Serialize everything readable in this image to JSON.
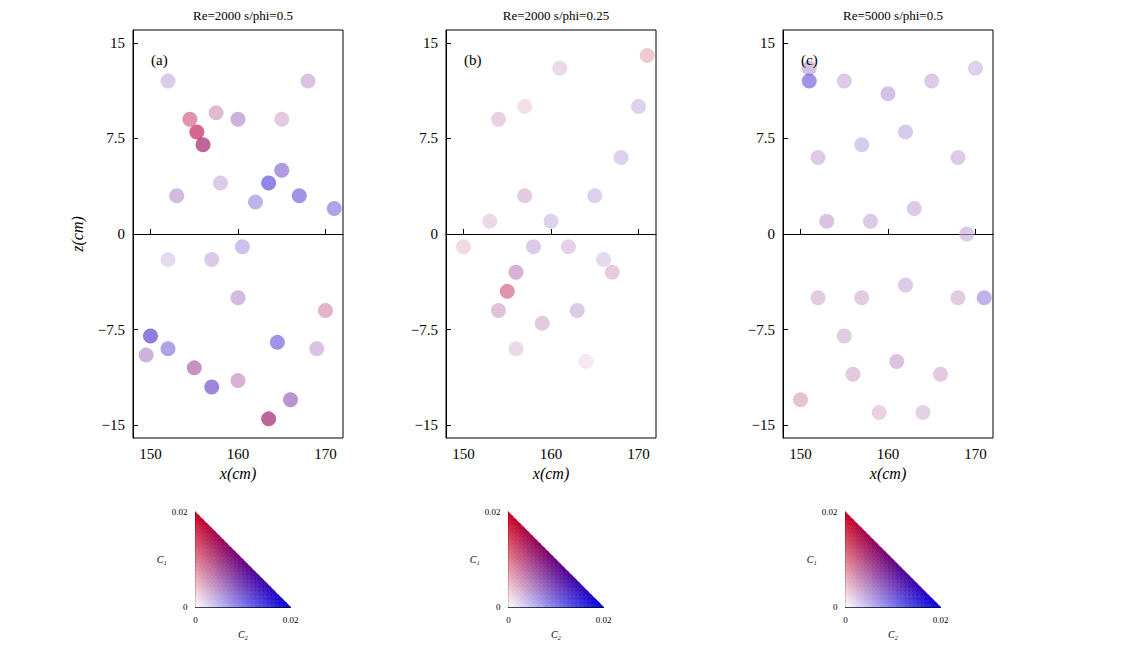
{
  "chart_data": [
    {
      "type": "scatter",
      "title": "Re=2000 s/phi=0.5",
      "panel_label": "(a)",
      "xlabel": "x(cm)",
      "ylabel": "z(cm)",
      "xlim": [
        148,
        172
      ],
      "ylim": [
        -16,
        16
      ],
      "xticks": [
        150,
        160,
        170
      ],
      "yticks": [
        {
          "value": -15,
          "label": "−15"
        },
        {
          "value": -7.5,
          "label": "−7.5"
        },
        0,
        7.5,
        15
      ],
      "points": [
        [
          155.3,
          8,
          0.018,
          0.004
        ],
        [
          156,
          7,
          0.014,
          0.006
        ],
        [
          154.5,
          9,
          0.012,
          0.002
        ],
        [
          157.5,
          9.5,
          0.006,
          0.003
        ],
        [
          160,
          9,
          0.004,
          0.006
        ],
        [
          163.5,
          4,
          0.002,
          0.014
        ],
        [
          165,
          5,
          0.003,
          0.01
        ],
        [
          162,
          2.5,
          0.002,
          0.008
        ],
        [
          167,
          3,
          0.002,
          0.012
        ],
        [
          158,
          4,
          0.003,
          0.004
        ],
        [
          153,
          3,
          0.004,
          0.005
        ],
        [
          152,
          -2,
          0.002,
          0.003
        ],
        [
          157,
          -2,
          0.003,
          0.004
        ],
        [
          160,
          -5,
          0.004,
          0.005
        ],
        [
          150,
          -8,
          0.003,
          0.014
        ],
        [
          152,
          -9,
          0.002,
          0.01
        ],
        [
          149.5,
          -9.5,
          0.004,
          0.006
        ],
        [
          155,
          -10.5,
          0.008,
          0.006
        ],
        [
          157,
          -12,
          0.004,
          0.012
        ],
        [
          160,
          -11.5,
          0.006,
          0.004
        ],
        [
          163.5,
          -14.5,
          0.014,
          0.006
        ],
        [
          166,
          -13,
          0.006,
          0.008
        ],
        [
          169,
          -9,
          0.004,
          0.004
        ],
        [
          171,
          2,
          0.002,
          0.01
        ],
        [
          168,
          12,
          0.004,
          0.004
        ],
        [
          152,
          12,
          0.003,
          0.004
        ],
        [
          164.5,
          -8.5,
          0.002,
          0.012
        ],
        [
          160.5,
          -1,
          0.002,
          0.006
        ],
        [
          165,
          9,
          0.004,
          0.003
        ],
        [
          170,
          -6,
          0.008,
          0.002
        ]
      ],
      "colorbar": {
        "c1_label": "C₁",
        "c2_label": "C₂",
        "c1_range": [
          0,
          0.02
        ],
        "c2_range": [
          0,
          0.02
        ],
        "c1_ticks": [
          0,
          0.02
        ],
        "c2_ticks": [
          0,
          0.02
        ],
        "zero_color": "#ffffff",
        "c1_color": "#d0001c",
        "c2_color": "#0000e0"
      }
    },
    {
      "type": "scatter",
      "title": "Re=2000 s/phi=0.25",
      "panel_label": "(b)",
      "xlabel": "x(cm)",
      "xlim": [
        148,
        172
      ],
      "ylim": [
        -16,
        16
      ],
      "xticks": [
        150,
        160,
        170
      ],
      "yticks": [
        {
          "value": -15,
          "label": "−15"
        },
        {
          "value": -7.5,
          "label": "−7.5"
        },
        0,
        7.5,
        15
      ],
      "points": [
        [
          155,
          -4.5,
          0.012,
          0.002
        ],
        [
          156,
          -3,
          0.006,
          0.004
        ],
        [
          154,
          -6,
          0.005,
          0.003
        ],
        [
          158,
          -1,
          0.003,
          0.004
        ],
        [
          160,
          1,
          0.002,
          0.004
        ],
        [
          162,
          -1,
          0.003,
          0.003
        ],
        [
          157,
          3,
          0.004,
          0.003
        ],
        [
          153,
          1,
          0.003,
          0.002
        ],
        [
          165,
          3,
          0.002,
          0.004
        ],
        [
          168,
          6,
          0.002,
          0.004
        ],
        [
          170,
          10,
          0.002,
          0.004
        ],
        [
          163,
          -6,
          0.003,
          0.004
        ],
        [
          159,
          -7,
          0.004,
          0.003
        ],
        [
          154,
          9,
          0.004,
          0.002
        ],
        [
          157,
          10,
          0.003,
          0.001
        ],
        [
          166,
          -2,
          0.002,
          0.003
        ],
        [
          171,
          14,
          0.006,
          0.001
        ],
        [
          150,
          -1,
          0.004,
          0.001
        ],
        [
          161,
          13,
          0.003,
          0.002
        ],
        [
          156,
          -9,
          0.003,
          0.002
        ],
        [
          167,
          -3,
          0.005,
          0.002
        ],
        [
          164,
          -10,
          0.002,
          0.001
        ]
      ],
      "colorbar": {
        "c1_label": "C₁",
        "c2_label": "C₂",
        "c1_range": [
          0,
          0.02
        ],
        "c2_range": [
          0,
          0.02
        ],
        "c1_ticks": [
          0,
          0.02
        ],
        "c2_ticks": [
          0,
          0.02
        ],
        "zero_color": "#ffffff",
        "c1_color": "#d0001c",
        "c2_color": "#0000e0"
      }
    },
    {
      "type": "scatter",
      "title": "Re=5000 s/phi=0.5",
      "panel_label": "(c)",
      "xlabel": "x(cm)",
      "xlim": [
        148,
        172
      ],
      "ylim": [
        -16,
        16
      ],
      "xticks": [
        150,
        160,
        170
      ],
      "yticks": [
        {
          "value": -15,
          "label": "−15"
        },
        {
          "value": -7.5,
          "label": "−7.5"
        },
        0,
        7.5,
        15
      ],
      "points": [
        [
          151,
          13,
          0.003,
          0.005
        ],
        [
          155,
          12,
          0.003,
          0.004
        ],
        [
          160,
          11,
          0.003,
          0.005
        ],
        [
          165,
          12,
          0.003,
          0.004
        ],
        [
          170,
          13,
          0.002,
          0.004
        ],
        [
          152,
          6,
          0.003,
          0.004
        ],
        [
          157,
          7,
          0.002,
          0.005
        ],
        [
          162,
          8,
          0.002,
          0.005
        ],
        [
          168,
          6,
          0.003,
          0.004
        ],
        [
          153,
          1,
          0.004,
          0.004
        ],
        [
          158,
          1,
          0.003,
          0.004
        ],
        [
          163,
          2,
          0.003,
          0.004
        ],
        [
          169,
          0,
          0.003,
          0.004
        ],
        [
          152,
          -5,
          0.004,
          0.003
        ],
        [
          157,
          -5,
          0.004,
          0.003
        ],
        [
          162,
          -4,
          0.003,
          0.004
        ],
        [
          168,
          -5,
          0.004,
          0.003
        ],
        [
          150,
          -13,
          0.006,
          0.002
        ],
        [
          156,
          -11,
          0.004,
          0.003
        ],
        [
          161,
          -10,
          0.004,
          0.004
        ],
        [
          166,
          -11,
          0.004,
          0.003
        ],
        [
          159,
          -14,
          0.004,
          0.002
        ],
        [
          164,
          -14,
          0.003,
          0.003
        ],
        [
          151,
          12,
          0.002,
          0.012
        ],
        [
          171,
          -5,
          0.002,
          0.008
        ],
        [
          155,
          -8,
          0.004,
          0.003
        ]
      ],
      "colorbar": {
        "c1_label": "C₁",
        "c2_label": "C₂",
        "c1_range": [
          0,
          0.02
        ],
        "c2_range": [
          0,
          0.02
        ],
        "c1_ticks": [
          0,
          0.02
        ],
        "c2_ticks": [
          0,
          0.02
        ],
        "zero_color": "#ffffff",
        "c1_color": "#d0001c",
        "c2_color": "#0000e0"
      }
    }
  ]
}
